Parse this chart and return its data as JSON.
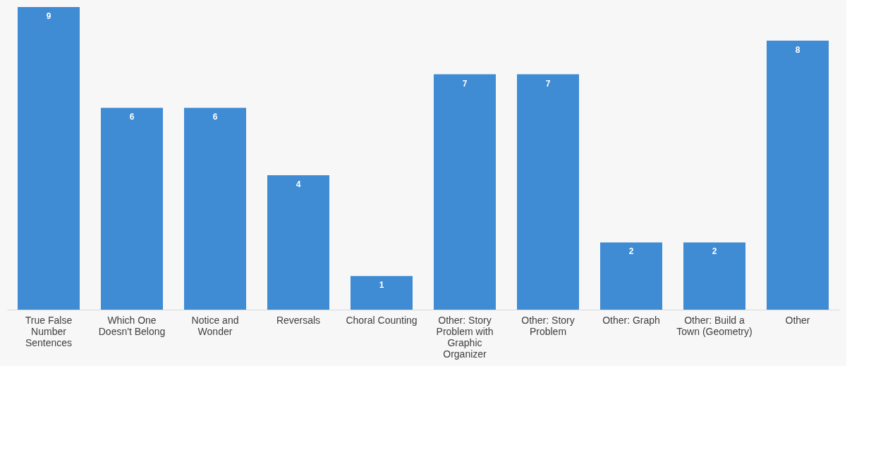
{
  "chart_data": {
    "type": "bar",
    "categories": [
      "True False Number Sentences",
      "Which One Doesn't Belong",
      "Notice and Wonder",
      "Reversals",
      "Choral Counting",
      "Other: Story Problem with Graphic Organizer",
      "Other: Story Problem",
      "Other: Graph",
      "Other: Build a Town (Geometry)",
      "Other"
    ],
    "values": [
      9,
      6,
      6,
      4,
      1,
      7,
      7,
      2,
      2,
      8
    ],
    "color": "#3f8bd4",
    "data_labels": true,
    "grid": false,
    "tick_labels": "x"
  }
}
